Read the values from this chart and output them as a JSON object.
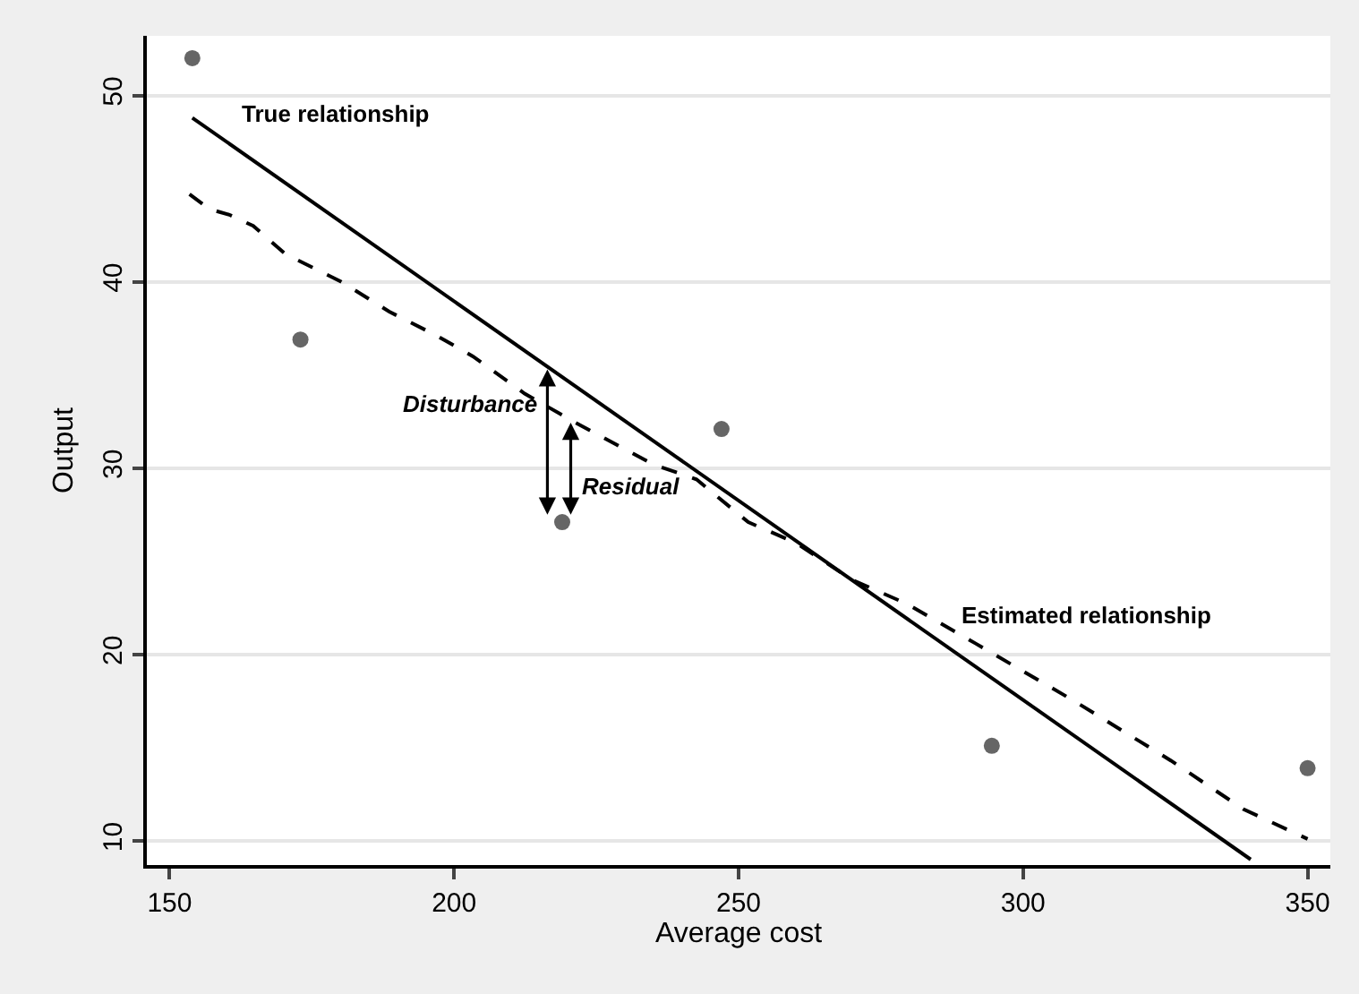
{
  "chart_data": {
    "type": "scatter",
    "xlabel": "Average cost",
    "ylabel": "Output",
    "xlim": [
      146,
      354
    ],
    "ylim": [
      8.7,
      53.2
    ],
    "xticks": [
      150,
      200,
      250,
      300,
      350
    ],
    "yticks": [
      10,
      20,
      30,
      40,
      50
    ],
    "grid": "y",
    "legend": false,
    "marker": "circle",
    "series": [
      {
        "color": "#666666",
        "x": [
          154,
          173,
          219,
          247,
          294.5,
          350
        ],
        "values": [
          52,
          36.9,
          27.1,
          32.1,
          15.1,
          13.9
        ]
      },
      {
        "type": "line",
        "name": "True relationship",
        "marker": "none",
        "color": "#000000",
        "line_style": "solid",
        "x": [
          154,
          340
        ],
        "values": [
          48.8,
          9.0
        ]
      },
      {
        "type": "line",
        "name": "Estimated relationship",
        "marker": "none",
        "color": "#000000",
        "line_style": "dashed",
        "x": [
          153.5,
          157,
          160.5,
          164.7,
          170.3,
          180.2,
          188.6,
          197,
          203.3,
          212.4,
          221,
          235,
          242.6,
          251.7,
          260,
          270,
          279.7,
          291.6,
          309,
          326,
          338.7,
          350
        ],
        "values": [
          44.7,
          43.9,
          43.6,
          43,
          41.5,
          40,
          38.4,
          37.1,
          36,
          34,
          32.5,
          30.2,
          29.4,
          27.1,
          26,
          24,
          22.7,
          20.6,
          17.5,
          14.3,
          11.7,
          10.1
        ]
      }
    ],
    "annotations": [
      {
        "text": "Disturbance",
        "x": 216.4,
        "y": 27.5
      },
      {
        "text": "Residual",
        "x": 220.5,
        "y": 27.5
      }
    ]
  }
}
